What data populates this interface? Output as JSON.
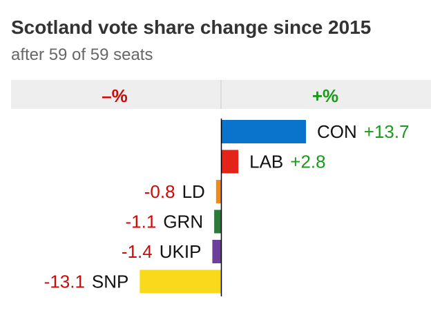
{
  "title": "Scotland vote share change since 2015",
  "subtitle": "after 59 of 59 seats",
  "chart_data": {
    "type": "bar",
    "orientation": "horizontal-diverging",
    "title": "Scotland vote share change since 2015",
    "subtitle": "after 59 of 59 seats",
    "header_negative": "–%",
    "header_positive": "+%",
    "categories": [
      "CON",
      "LAB",
      "LD",
      "GRN",
      "UKIP",
      "SNP"
    ],
    "values": [
      13.7,
      2.8,
      -0.8,
      -1.1,
      -1.4,
      -13.1
    ],
    "value_labels": [
      "+13.7",
      "+2.8",
      "-0.8",
      "-1.1",
      "-1.4",
      "-13.1"
    ],
    "colors": [
      "#0a74cc",
      "#e4231b",
      "#f08a1a",
      "#2a7a3a",
      "#6c3f99",
      "#f8d91c"
    ],
    "positive_label_color": "#1a9a1a",
    "negative_label_color": "#cc0a0a",
    "xlim": [
      -15.0,
      15.0
    ]
  }
}
